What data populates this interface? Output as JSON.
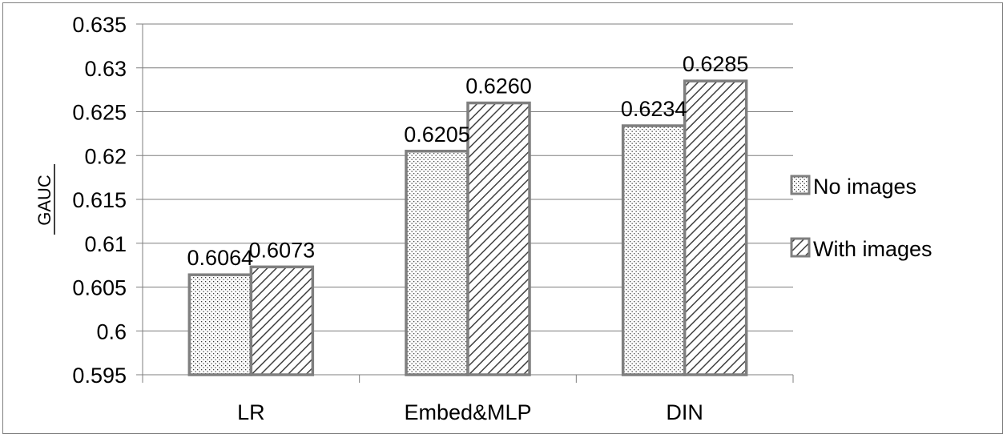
{
  "chart_data": {
    "type": "bar",
    "title": "",
    "xlabel": "",
    "ylabel": "GAUC",
    "categories": [
      "LR",
      "Embed&MLP",
      "DIN"
    ],
    "series": [
      {
        "name": "No images",
        "values": [
          0.6064,
          0.6205,
          0.6234
        ],
        "value_labels": [
          "0.6064",
          "0.6205",
          "0.6234"
        ],
        "pattern": "dots"
      },
      {
        "name": "With images",
        "values": [
          0.6073,
          0.626,
          0.6285
        ],
        "value_labels": [
          "0.6073",
          "0.6260",
          "0.6285"
        ],
        "pattern": "diagonal-hatch"
      }
    ],
    "ylim": [
      0.595,
      0.635
    ],
    "yticks": [
      0.595,
      0.6,
      0.605,
      0.61,
      0.615,
      0.62,
      0.625,
      0.63,
      0.635
    ],
    "ytick_labels": [
      "0.595",
      "0.6",
      "0.605",
      "0.61",
      "0.615",
      "0.62",
      "0.625",
      "0.63",
      "0.635"
    ],
    "grid": true,
    "legend_position": "right",
    "colors": {
      "bar_stroke": "#7f7f7f",
      "pattern_ink": "#404040",
      "gridline": "#7f7f7f",
      "axis": "#7f7f7f"
    }
  }
}
